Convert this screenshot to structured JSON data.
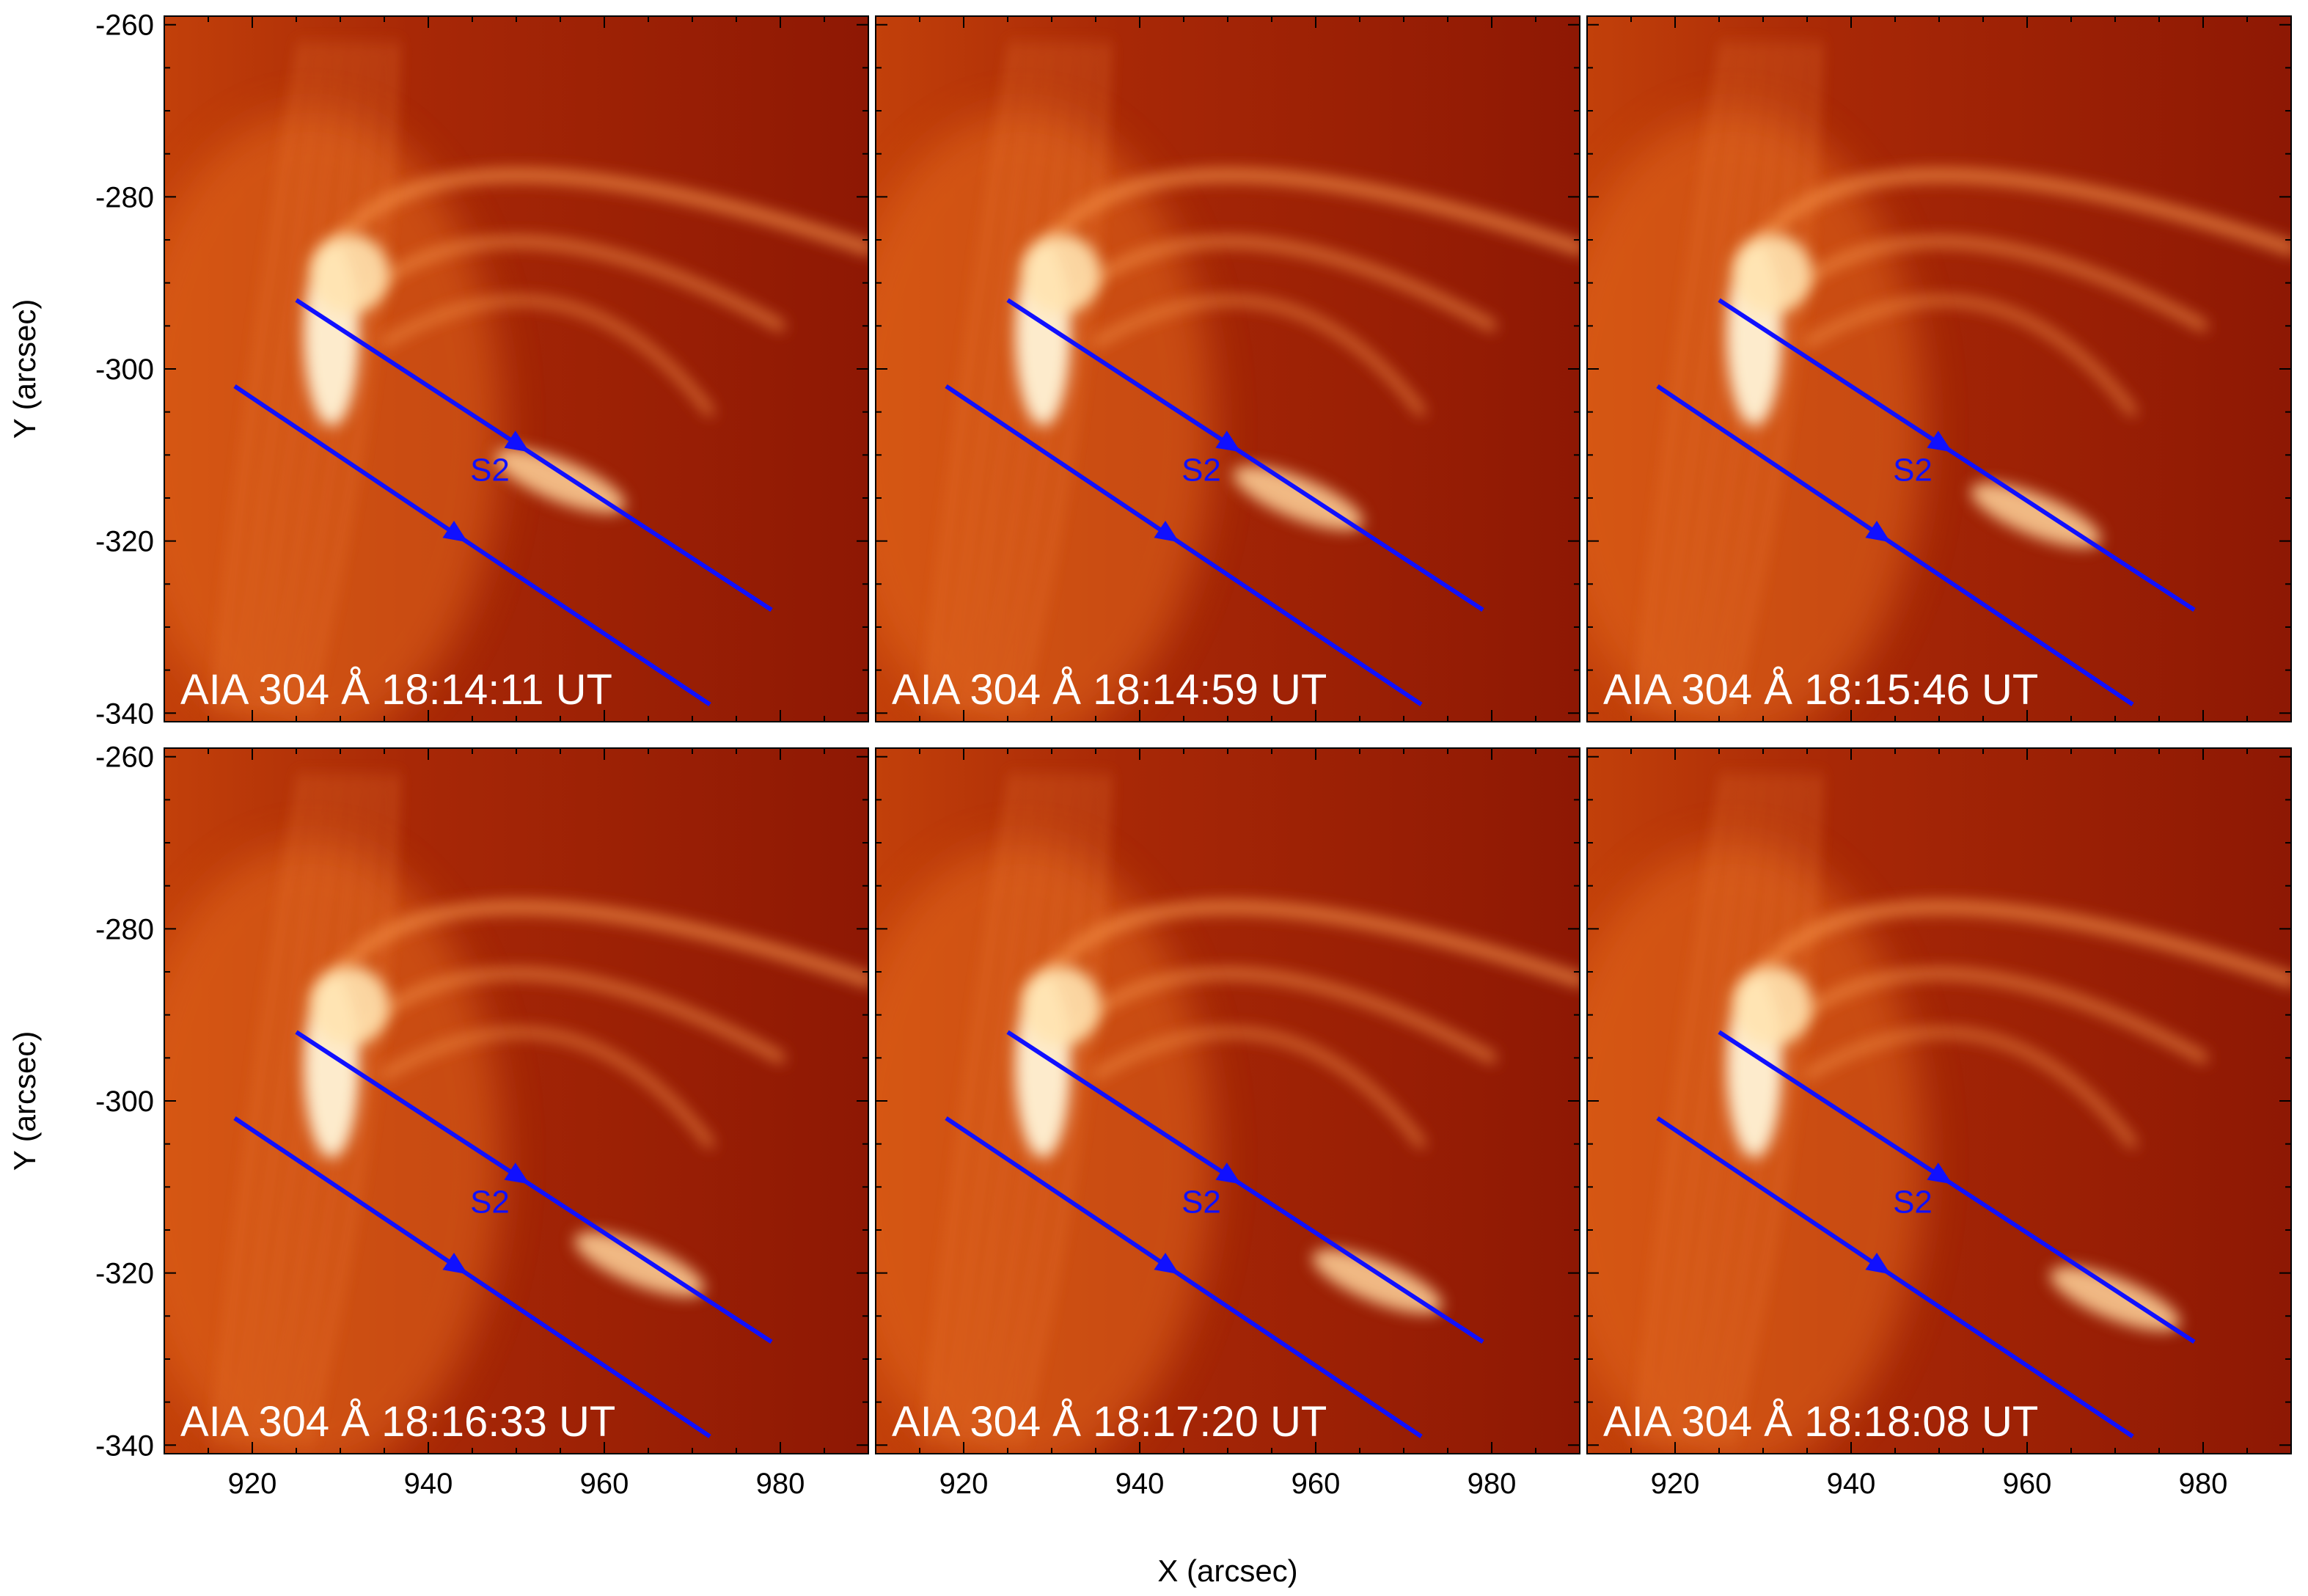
{
  "figure": {
    "xlabel": "X (arcsec)",
    "ylabel": "Y (arcsec)",
    "x_range": [
      910,
      990
    ],
    "y_range": [
      -341,
      -259
    ],
    "x_ticks": [
      920,
      940,
      960,
      980
    ],
    "y_ticks": [
      -260,
      -280,
      -300,
      -320,
      -340
    ],
    "slit_color": "#1010ff",
    "label_color": "#ffffff",
    "slit_label": "S2",
    "slits": [
      {
        "from": [
          925,
          -292
        ],
        "to": [
          979,
          -328
        ]
      },
      {
        "from": [
          918,
          -302
        ],
        "to": [
          972,
          -339
        ]
      }
    ],
    "panels": [
      {
        "label": "AIA 304 Å  18:14:11 UT"
      },
      {
        "label": "AIA 304 Å  18:14:59 UT"
      },
      {
        "label": "AIA 304 Å  18:15:46 UT"
      },
      {
        "label": "AIA 304 Å  18:16:33 UT"
      },
      {
        "label": "AIA 304 Å  18:17:20 UT"
      },
      {
        "label": "AIA 304 Å  18:18:08 UT"
      }
    ]
  }
}
